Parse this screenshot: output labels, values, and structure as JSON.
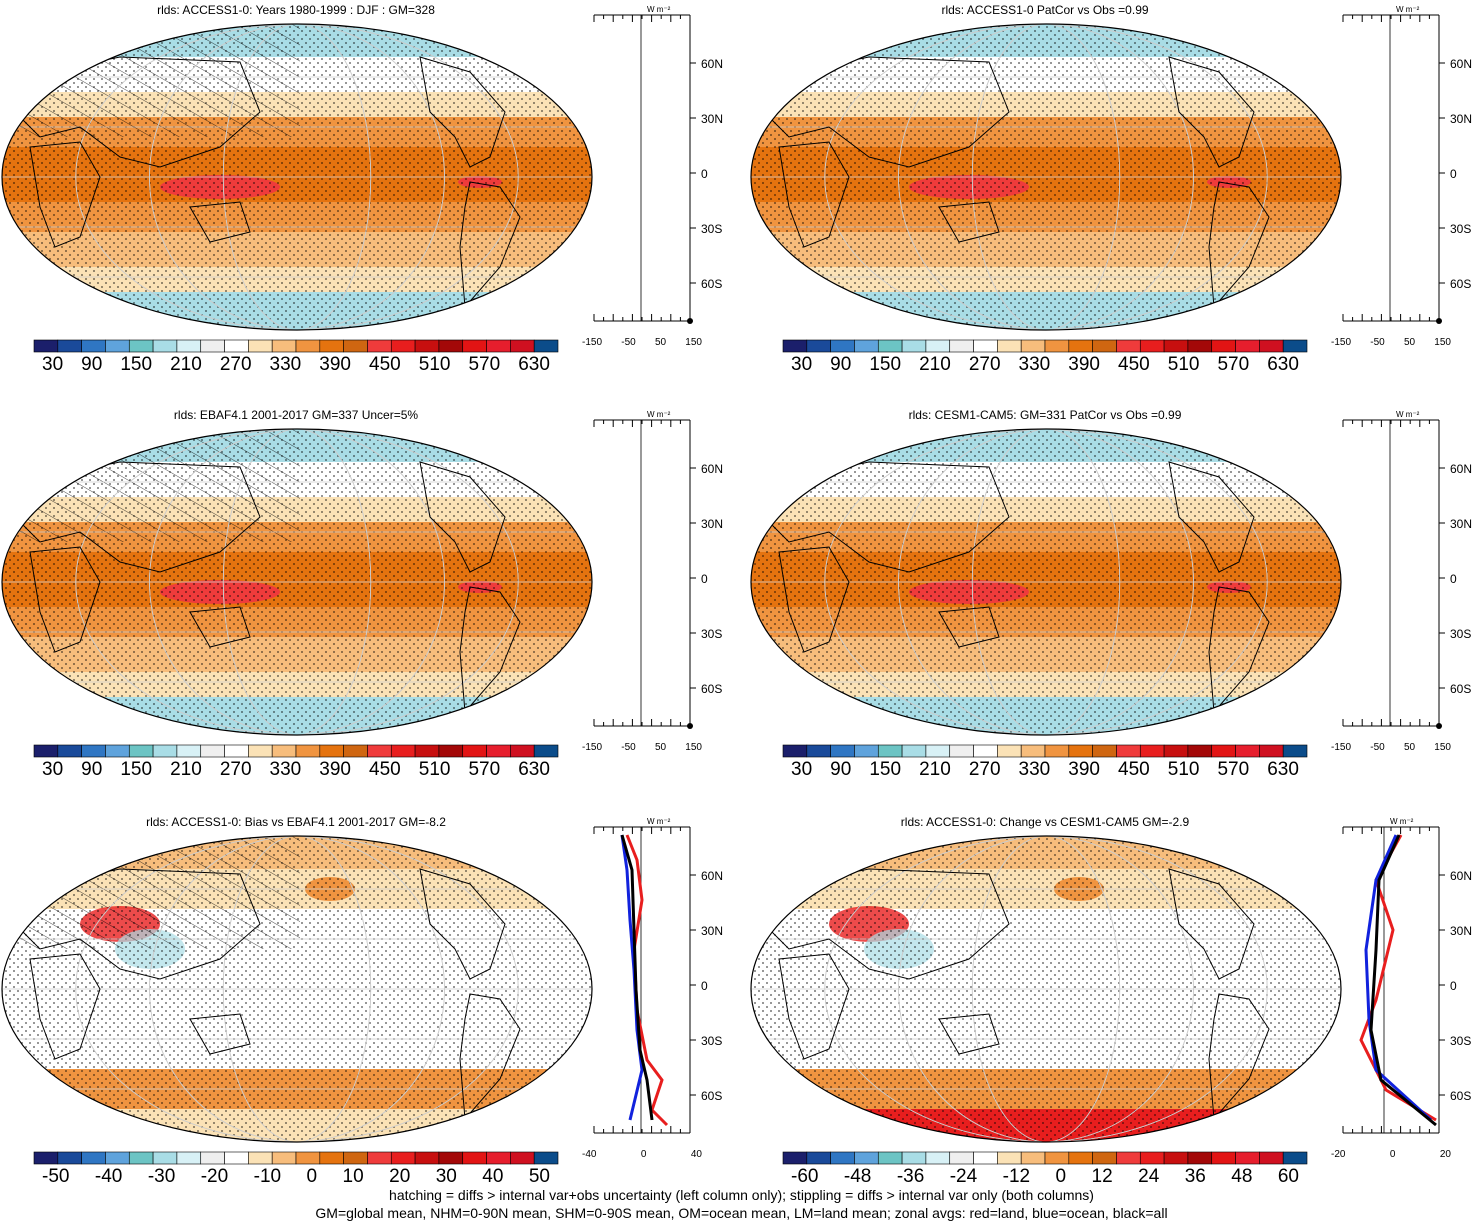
{
  "palettes": {
    "abs": [
      "#1b1f6b",
      "#1a4a9a",
      "#2f76c3",
      "#5fa3dc",
      "#6cc4c4",
      "#a9dde6",
      "#d8f1f6",
      "#efefef",
      "#ffffff",
      "#fbe2b6",
      "#f7bd7c",
      "#f09440",
      "#e5730f",
      "#cf6611",
      "#ef3b3b",
      "#e81e1e",
      "#c70f0f",
      "#a30808",
      "#e21414",
      "#e61e2d",
      "#cf1020",
      "#0b4c8a"
    ],
    "diff": [
      "#1b1f6b",
      "#1a4a9a",
      "#2f76c3",
      "#5fa3dc",
      "#6cc4c4",
      "#a9dde6",
      "#d8f1f6",
      "#efefef",
      "#ffffff",
      "#fbe2b6",
      "#f7bd7c",
      "#f09440",
      "#e5730f",
      "#cf6611",
      "#ef3b3b",
      "#e81e1e",
      "#c70f0f",
      "#a30808",
      "#e21414",
      "#e61e2d",
      "#cf1020",
      "#0b4c8a"
    ]
  },
  "panels": [
    {
      "title": "rlds: ACCESS1-0: Years 1980-1999 : DJF : GM=328",
      "kind": "abs",
      "colorbar_labels": [
        "30",
        "90",
        "150",
        "210",
        "270",
        "330",
        "390",
        "450",
        "510",
        "570",
        "630"
      ],
      "zonal_ticks": [
        "-150",
        "-50",
        "50",
        "150"
      ],
      "lat_labels": [
        "60N",
        "30N",
        "0",
        "30S",
        "60S"
      ],
      "unit": "W m⁻²",
      "hatched": true
    },
    {
      "title": "rlds: ACCESS1-0 PatCor vs Obs =0.99",
      "kind": "abs",
      "colorbar_labels": [
        "30",
        "90",
        "150",
        "210",
        "270",
        "330",
        "390",
        "450",
        "510",
        "570",
        "630"
      ],
      "zonal_ticks": [
        "-150",
        "-50",
        "50",
        "150"
      ],
      "lat_labels": [
        "60N",
        "30N",
        "0",
        "30S",
        "60S"
      ],
      "unit": "W m⁻²",
      "hatched": false
    },
    {
      "title": "rlds: EBAF4.1 2001-2017 GM=337 Uncer=5%",
      "kind": "abs",
      "colorbar_labels": [
        "30",
        "90",
        "150",
        "210",
        "270",
        "330",
        "390",
        "450",
        "510",
        "570",
        "630"
      ],
      "zonal_ticks": [
        "-150",
        "-50",
        "50",
        "150"
      ],
      "lat_labels": [
        "60N",
        "30N",
        "0",
        "30S",
        "60S"
      ],
      "unit": "W m⁻²",
      "hatched": true
    },
    {
      "title": "rlds: CESM1-CAM5: GM=331 PatCor vs Obs =0.99",
      "kind": "abs",
      "colorbar_labels": [
        "30",
        "90",
        "150",
        "210",
        "270",
        "330",
        "390",
        "450",
        "510",
        "570",
        "630"
      ],
      "zonal_ticks": [
        "-150",
        "-50",
        "50",
        "150"
      ],
      "lat_labels": [
        "60N",
        "30N",
        "0",
        "30S",
        "60S"
      ],
      "unit": "W m⁻²",
      "hatched": false
    },
    {
      "title": "rlds: ACCESS1-0: Bias vs EBAF4.1 2001-2017 GM=-8.2",
      "kind": "diff",
      "colorbar_labels": [
        "-50",
        "-40",
        "-30",
        "-20",
        "-10",
        "0",
        "10",
        "20",
        "30",
        "40",
        "50"
      ],
      "zonal_ticks": [
        "-40",
        "0",
        "40"
      ],
      "lat_labels": [
        "60N",
        "30N",
        "0",
        "30S",
        "60S"
      ],
      "unit": "W m⁻²",
      "hatched": true
    },
    {
      "title": "rlds: ACCESS1-0: Change vs CESM1-CAM5 GM=-2.9",
      "kind": "diff",
      "colorbar_labels": [
        "-60",
        "-48",
        "-36",
        "-24",
        "-12",
        "0",
        "12",
        "24",
        "36",
        "48",
        "60"
      ],
      "zonal_ticks": [
        "-20",
        "0",
        "20"
      ],
      "lat_labels": [
        "60N",
        "30N",
        "0",
        "30S",
        "60S"
      ],
      "unit": "W m⁻²",
      "hatched": false
    }
  ],
  "footer": {
    "line1": "hatching = diffs > internal var+obs uncertainty (left column only); stippling = diffs > internal var only (both columns)",
    "line2": "GM=global mean, NHM=0-90N mean, SHM=0-90S mean, OM=ocean mean, LM=land mean; zonal avgs: red=land, blue=ocean, black=all"
  }
}
